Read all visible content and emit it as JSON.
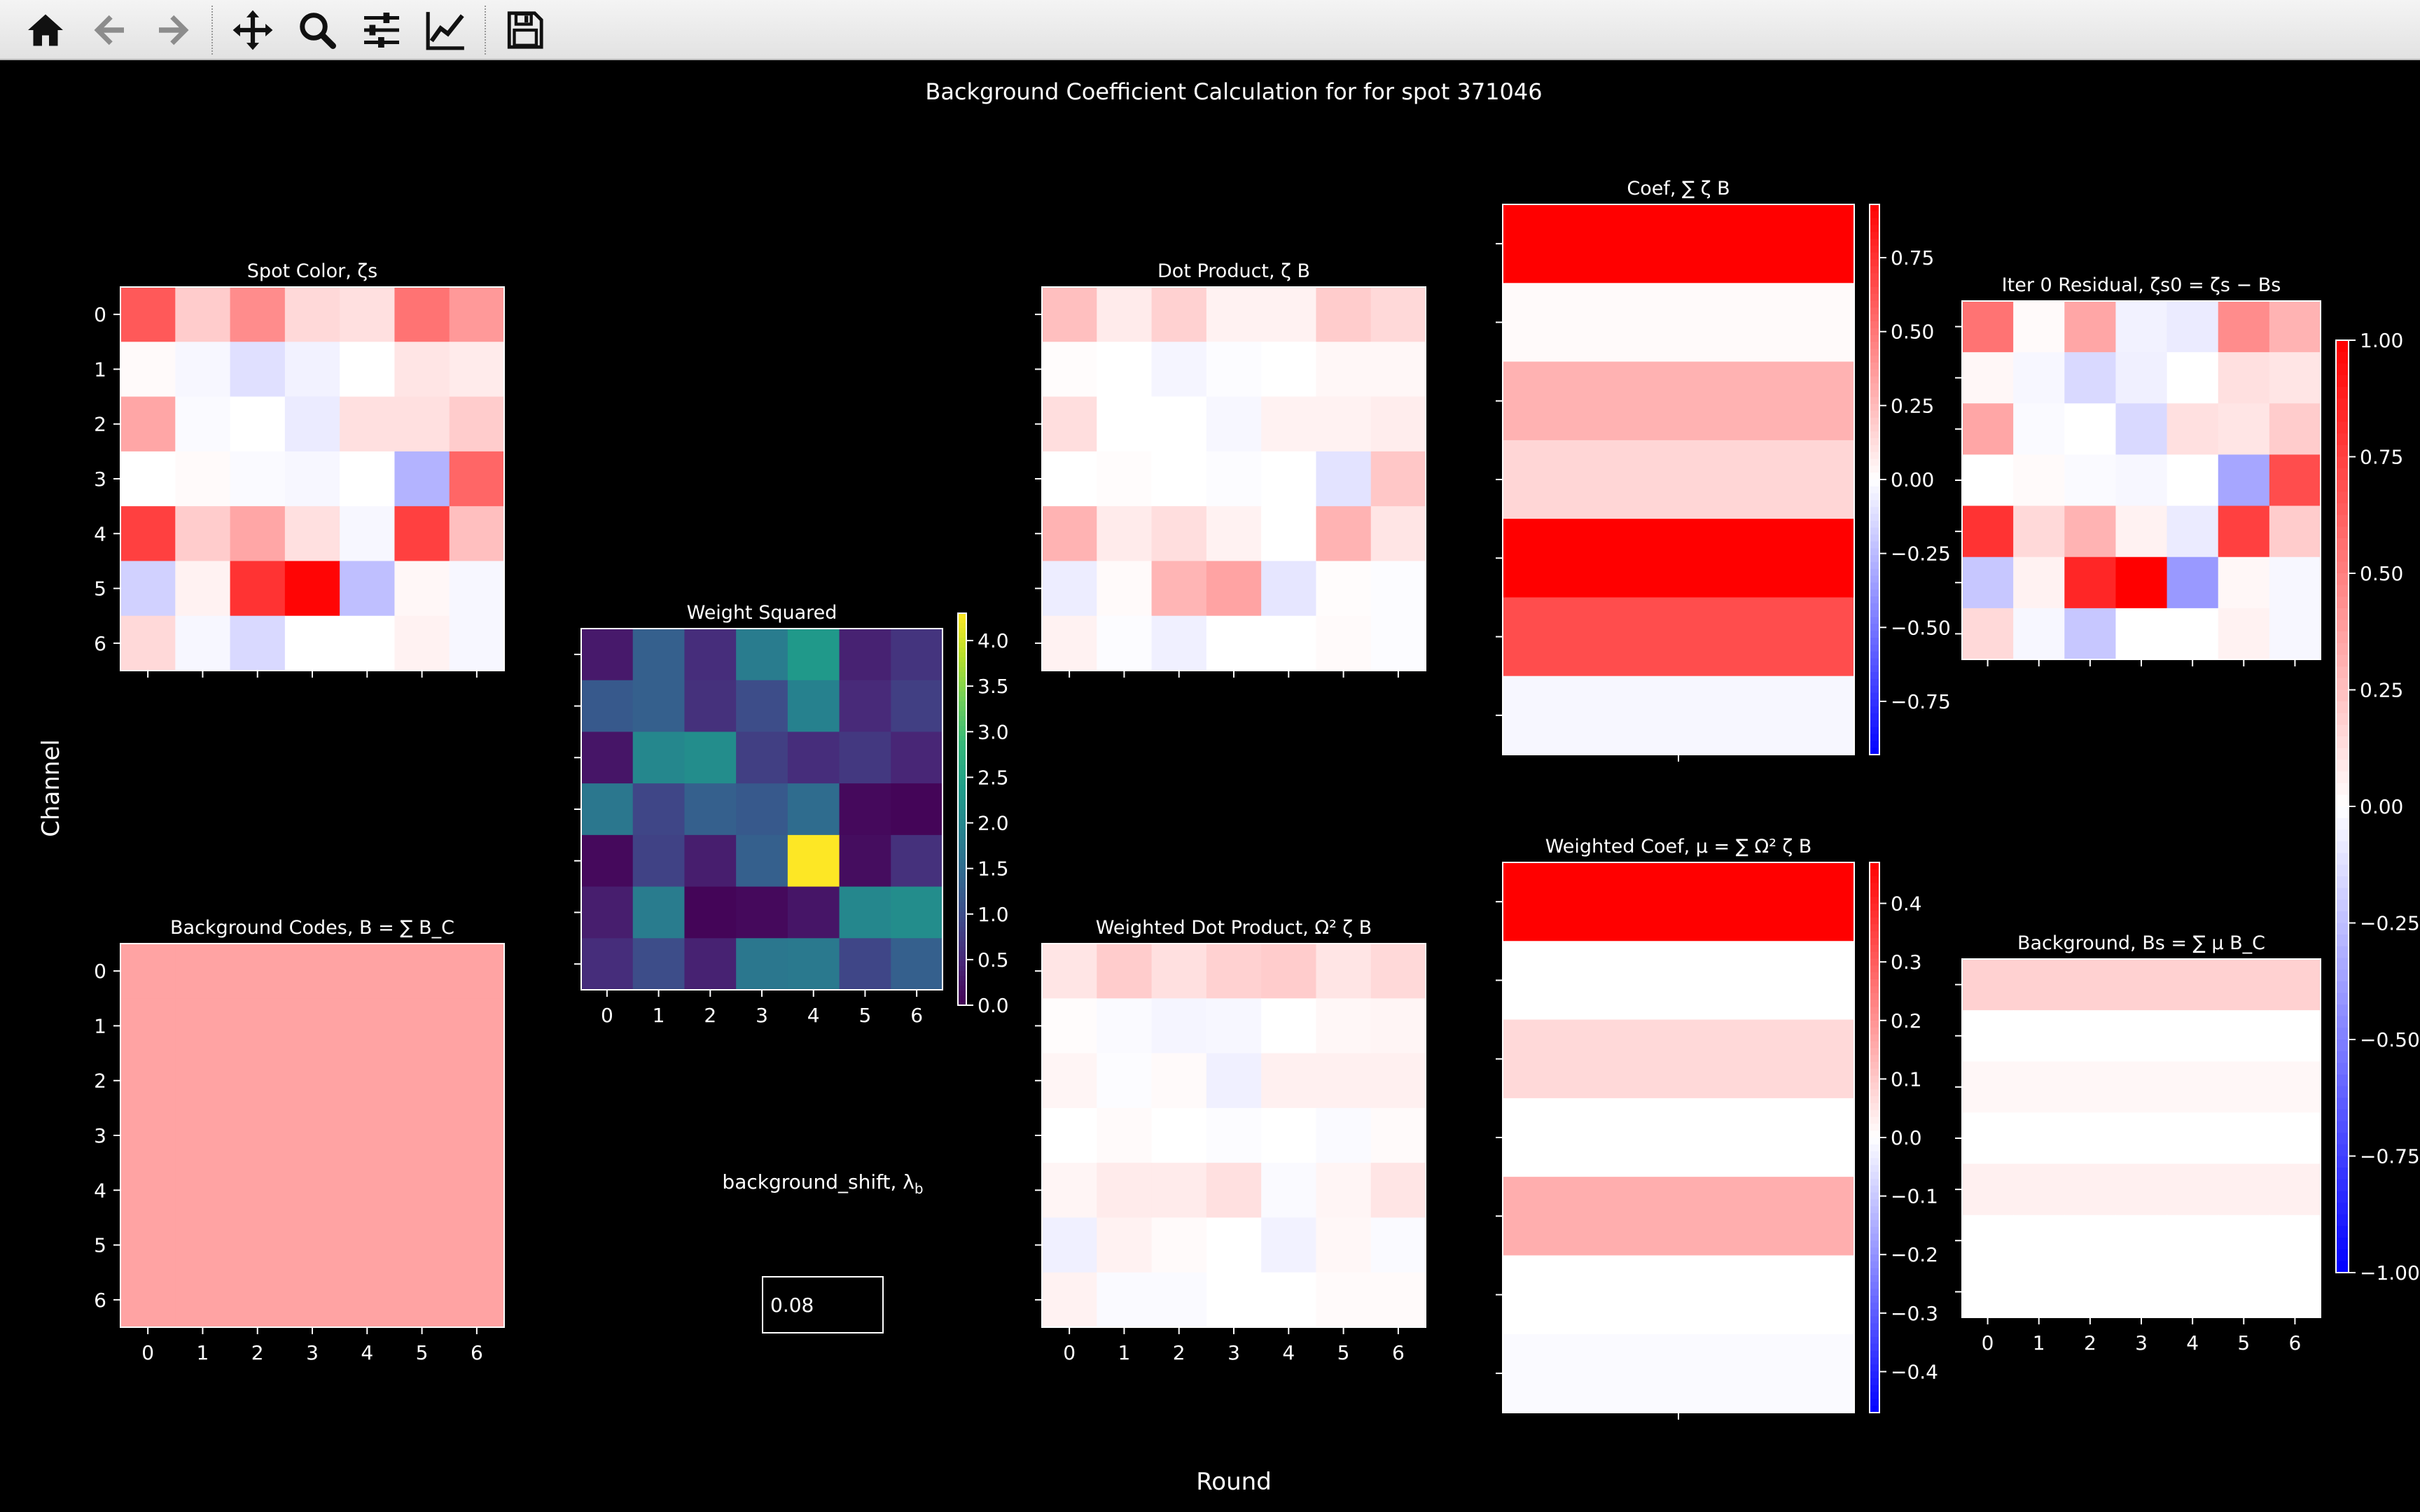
{
  "toolbar": {
    "items": [
      {
        "name": "home-icon"
      },
      {
        "name": "back-icon"
      },
      {
        "name": "forward-icon"
      },
      {
        "name": "pan-icon"
      },
      {
        "name": "zoom-icon"
      },
      {
        "name": "configure-subplots-icon"
      },
      {
        "name": "edit-axis-icon"
      },
      {
        "name": "save-icon"
      }
    ],
    "bg": "#ececec",
    "icon_color": "#111111",
    "icon_disabled_color": "#8c8c8c"
  },
  "figure": {
    "title": "Background Coefficient Calculation for for spot 371046",
    "xlabel": "Round",
    "ylabel": "Channel"
  },
  "input": {
    "label": "background_shift, λ",
    "label_sub": "b",
    "value": "0.08"
  },
  "chart_data": [
    {
      "id": "spot-color",
      "type": "heatmap",
      "title": "Spot Color, ζs",
      "x": [
        "0",
        "1",
        "2",
        "3",
        "4",
        "5",
        "6"
      ],
      "y": [
        "0",
        "1",
        "2",
        "3",
        "4",
        "5",
        "6"
      ],
      "tick_labels_x": false,
      "tick_labels_y": true,
      "cmap": "bwr",
      "vmin": -1.0,
      "vmax": 1.0,
      "values": [
        [
          0.65,
          0.2,
          0.45,
          0.15,
          0.12,
          0.55,
          0.4
        ],
        [
          0.02,
          -0.03,
          -0.12,
          -0.05,
          0.0,
          0.1,
          0.08
        ],
        [
          0.35,
          -0.02,
          0.0,
          -0.08,
          0.12,
          0.12,
          0.2
        ],
        [
          0.0,
          0.02,
          -0.02,
          -0.03,
          0.0,
          -0.3,
          0.6
        ],
        [
          0.75,
          0.2,
          0.35,
          0.12,
          -0.03,
          0.75,
          0.25
        ],
        [
          -0.18,
          0.05,
          0.8,
          0.98,
          -0.25,
          0.03,
          -0.03
        ],
        [
          0.15,
          -0.03,
          -0.15,
          0.0,
          0.0,
          0.05,
          -0.03
        ]
      ]
    },
    {
      "id": "background-codes",
      "type": "heatmap",
      "title": "Background Codes, B = ∑ B_C",
      "x": [
        "0",
        "1",
        "2",
        "3",
        "4",
        "5",
        "6"
      ],
      "y": [
        "0",
        "1",
        "2",
        "3",
        "4",
        "5",
        "6"
      ],
      "tick_labels_x": true,
      "tick_labels_y": true,
      "cmap": "bwr",
      "vmin": -1.0,
      "vmax": 1.0,
      "values": [
        [
          0.36,
          0.36,
          0.36,
          0.36,
          0.36,
          0.36,
          0.36
        ],
        [
          0.36,
          0.36,
          0.36,
          0.36,
          0.36,
          0.36,
          0.36
        ],
        [
          0.36,
          0.36,
          0.36,
          0.36,
          0.36,
          0.36,
          0.36
        ],
        [
          0.36,
          0.36,
          0.36,
          0.36,
          0.36,
          0.36,
          0.36
        ],
        [
          0.36,
          0.36,
          0.36,
          0.36,
          0.36,
          0.36,
          0.36
        ],
        [
          0.36,
          0.36,
          0.36,
          0.36,
          0.36,
          0.36,
          0.36
        ],
        [
          0.36,
          0.36,
          0.36,
          0.36,
          0.36,
          0.36,
          0.36
        ]
      ]
    },
    {
      "id": "weight-squared",
      "type": "heatmap",
      "title": "Weight Squared",
      "x": [
        "0",
        "1",
        "2",
        "3",
        "4",
        "5",
        "6"
      ],
      "y": [
        "0",
        "1",
        "2",
        "3",
        "4",
        "5",
        "6"
      ],
      "tick_labels_x": true,
      "tick_labels_y": false,
      "cmap": "viridis",
      "vmin": 0.0,
      "vmax": 4.3,
      "colorbar_ticks": [
        0.0,
        0.5,
        1.0,
        1.5,
        2.0,
        2.5,
        3.0,
        3.5,
        4.0
      ],
      "colorbar_tick_labels": [
        "0.0",
        "0.5",
        "1.0",
        "1.5",
        "2.0",
        "2.5",
        "3.0",
        "3.5",
        "4.0"
      ],
      "values": [
        [
          0.3,
          1.3,
          0.55,
          1.8,
          2.3,
          0.4,
          0.65
        ],
        [
          1.2,
          1.3,
          0.6,
          1.0,
          1.9,
          0.5,
          0.8
        ],
        [
          0.25,
          2.0,
          2.1,
          0.8,
          0.55,
          0.7,
          0.45
        ],
        [
          1.7,
          0.9,
          1.3,
          1.2,
          1.5,
          0.1,
          0.05
        ],
        [
          0.1,
          0.85,
          0.35,
          1.3,
          4.3,
          0.15,
          0.6
        ],
        [
          0.35,
          1.8,
          0.05,
          0.1,
          0.25,
          2.0,
          2.1
        ],
        [
          0.55,
          1.0,
          0.4,
          1.7,
          1.75,
          0.9,
          1.3
        ]
      ]
    },
    {
      "id": "dot-product",
      "type": "heatmap",
      "title": "Dot Product, ζ B",
      "x": [
        "0",
        "1",
        "2",
        "3",
        "4",
        "5",
        "6"
      ],
      "y": [
        "0",
        "1",
        "2",
        "3",
        "4",
        "5",
        "6"
      ],
      "tick_labels_x": false,
      "tick_labels_y": false,
      "cmap": "bwr",
      "vmin": -1.0,
      "vmax": 1.0,
      "values": [
        [
          0.25,
          0.08,
          0.18,
          0.05,
          0.05,
          0.2,
          0.15
        ],
        [
          0.01,
          0.0,
          -0.04,
          -0.01,
          0.0,
          0.03,
          0.03
        ],
        [
          0.13,
          0.0,
          0.0,
          -0.03,
          0.05,
          0.05,
          0.07
        ],
        [
          0.0,
          0.01,
          0.0,
          -0.01,
          0.0,
          -0.11,
          0.22
        ],
        [
          0.3,
          0.08,
          0.13,
          0.05,
          0.0,
          0.3,
          0.1
        ],
        [
          -0.07,
          0.02,
          0.29,
          0.36,
          -0.1,
          0.01,
          -0.01
        ],
        [
          0.05,
          -0.01,
          -0.06,
          0.0,
          0.0,
          0.02,
          -0.01
        ]
      ]
    },
    {
      "id": "weighted-dot-product",
      "type": "heatmap",
      "title": "Weighted Dot Product, Ω² ζ B",
      "x": [
        "0",
        "1",
        "2",
        "3",
        "4",
        "5",
        "6"
      ],
      "y": [
        "0",
        "1",
        "2",
        "3",
        "4",
        "5",
        "6"
      ],
      "tick_labels_x": true,
      "tick_labels_y": false,
      "cmap": "bwr",
      "vmin": -1.0,
      "vmax": 1.0,
      "values": [
        [
          0.1,
          0.2,
          0.12,
          0.18,
          0.2,
          0.1,
          0.15
        ],
        [
          0.01,
          -0.02,
          -0.04,
          -0.03,
          0.0,
          0.03,
          0.04
        ],
        [
          0.04,
          -0.01,
          0.02,
          -0.06,
          0.06,
          0.06,
          0.06
        ],
        [
          0.0,
          0.02,
          0.0,
          -0.01,
          0.0,
          -0.02,
          0.02
        ],
        [
          0.04,
          0.08,
          0.08,
          0.12,
          -0.02,
          0.04,
          0.1
        ],
        [
          -0.06,
          0.05,
          0.02,
          0.0,
          -0.05,
          0.03,
          -0.02
        ],
        [
          0.05,
          -0.02,
          -0.02,
          0.0,
          0.0,
          0.02,
          0.02
        ]
      ]
    },
    {
      "id": "coef",
      "type": "heatmap",
      "title": "Coef, ∑ ζ B",
      "x": [
        "0"
      ],
      "y": [
        "0",
        "1",
        "2",
        "3",
        "4",
        "5",
        "6"
      ],
      "tick_labels_x": false,
      "tick_labels_y": false,
      "cmap": "bwr",
      "vmin": -0.93,
      "vmax": 0.93,
      "colorbar_ticks": [
        -0.75,
        -0.5,
        -0.25,
        0.0,
        0.25,
        0.5,
        0.75
      ],
      "colorbar_tick_labels": [
        "−0.75",
        "−0.50",
        "−0.25",
        "0.00",
        "0.25",
        "0.50",
        "0.75"
      ],
      "values": [
        [
          0.93
        ],
        [
          0.02
        ],
        [
          0.28
        ],
        [
          0.15
        ],
        [
          0.93
        ],
        [
          0.65
        ],
        [
          -0.03
        ]
      ]
    },
    {
      "id": "weighted-coef",
      "type": "heatmap",
      "title": "Weighted Coef, μ = ∑ Ω² ζ B",
      "x": [
        "0"
      ],
      "y": [
        "0",
        "1",
        "2",
        "3",
        "4",
        "5",
        "6"
      ],
      "tick_labels_x": false,
      "tick_labels_y": false,
      "cmap": "bwr",
      "vmin": -0.47,
      "vmax": 0.47,
      "colorbar_ticks": [
        -0.4,
        -0.3,
        -0.2,
        -0.1,
        0.0,
        0.1,
        0.2,
        0.3,
        0.4
      ],
      "colorbar_tick_labels": [
        "−0.4",
        "−0.3",
        "−0.2",
        "−0.1",
        "0.0",
        "0.1",
        "0.2",
        "0.3",
        "0.4"
      ],
      "values": [
        [
          0.47
        ],
        [
          0.0
        ],
        [
          0.07
        ],
        [
          0.0
        ],
        [
          0.15
        ],
        [
          0.0
        ],
        [
          -0.01
        ]
      ]
    },
    {
      "id": "iter-residual",
      "type": "heatmap",
      "title": "Iter 0 Residual, ζs0 = ζs − Bs",
      "x": [
        "0",
        "1",
        "2",
        "3",
        "4",
        "5",
        "6"
      ],
      "y": [
        "0",
        "1",
        "2",
        "3",
        "4",
        "5",
        "6"
      ],
      "tick_labels_x": false,
      "tick_labels_y": false,
      "cmap": "bwr",
      "vmin": -1.0,
      "vmax": 1.0,
      "colorbar_ticks": [
        -1.0,
        -0.75,
        -0.5,
        -0.25,
        0.0,
        0.25,
        0.5,
        0.75,
        1.0
      ],
      "colorbar_tick_labels": [
        "−1.00",
        "−0.75",
        "−0.50",
        "−0.25",
        "0.00",
        "0.25",
        "0.50",
        "0.75",
        "1.00"
      ],
      "values": [
        [
          0.55,
          0.02,
          0.35,
          -0.05,
          -0.08,
          0.45,
          0.3
        ],
        [
          0.03,
          -0.03,
          -0.15,
          -0.06,
          0.0,
          0.12,
          0.1
        ],
        [
          0.35,
          -0.02,
          0.0,
          -0.15,
          0.12,
          0.1,
          0.2
        ],
        [
          0.0,
          0.02,
          -0.02,
          -0.03,
          0.0,
          -0.35,
          0.7
        ],
        [
          0.8,
          0.15,
          0.3,
          0.05,
          -0.08,
          0.75,
          0.2
        ],
        [
          -0.22,
          0.05,
          0.85,
          1.0,
          -0.4,
          0.03,
          -0.03
        ],
        [
          0.15,
          -0.03,
          -0.22,
          0.0,
          0.0,
          0.05,
          -0.03
        ]
      ]
    },
    {
      "id": "background",
      "type": "heatmap",
      "title": "Background, Bs = ∑ μ B_C",
      "x": [
        "0",
        "1",
        "2",
        "3",
        "4",
        "5",
        "6"
      ],
      "y": [
        "0",
        "1",
        "2",
        "3",
        "4",
        "5",
        "6"
      ],
      "tick_labels_x": true,
      "tick_labels_y": false,
      "cmap": "bwr",
      "vmin": -1.0,
      "vmax": 1.0,
      "values": [
        [
          0.18,
          0.18,
          0.18,
          0.18,
          0.18,
          0.18,
          0.18
        ],
        [
          0.0,
          0.0,
          0.0,
          0.0,
          0.0,
          0.0,
          0.0
        ],
        [
          0.03,
          0.03,
          0.03,
          0.03,
          0.03,
          0.03,
          0.03
        ],
        [
          0.0,
          0.0,
          0.0,
          0.0,
          0.0,
          0.0,
          0.0
        ],
        [
          0.06,
          0.06,
          0.06,
          0.06,
          0.06,
          0.06,
          0.06
        ],
        [
          0.0,
          0.0,
          0.0,
          0.0,
          0.0,
          0.0,
          0.0
        ],
        [
          0.0,
          0.0,
          0.0,
          0.0,
          0.0,
          0.0,
          0.0
        ]
      ]
    }
  ]
}
